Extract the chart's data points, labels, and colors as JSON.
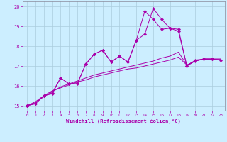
{
  "background_color": "#cceeff",
  "grid_color": "#aaccdd",
  "line_color": "#aa00aa",
  "xlim": [
    -0.5,
    23.5
  ],
  "ylim": [
    14.75,
    20.25
  ],
  "xtick_labels": [
    "0",
    "1",
    "2",
    "3",
    "4",
    "5",
    "6",
    "7",
    "8",
    "9",
    "10",
    "11",
    "12",
    "13",
    "14",
    "15",
    "16",
    "17",
    "18",
    "19",
    "20",
    "21",
    "22",
    "23"
  ],
  "ytick_labels": [
    "15",
    "16",
    "17",
    "18",
    "19",
    "20"
  ],
  "ytick_vals": [
    15,
    16,
    17,
    18,
    19,
    20
  ],
  "xlabel": "Windchill (Refroidissement éolien,°C)",
  "series": [
    {
      "x": [
        0,
        1,
        2,
        3,
        4,
        5,
        6,
        7,
        8,
        9,
        10,
        11,
        12,
        13,
        14,
        15,
        16,
        17,
        18,
        19,
        20,
        21,
        22,
        23
      ],
      "y": [
        15.0,
        15.1,
        15.5,
        15.6,
        16.4,
        16.1,
        16.1,
        17.1,
        17.6,
        17.8,
        17.2,
        17.5,
        17.2,
        18.3,
        18.6,
        19.9,
        19.35,
        18.9,
        18.85,
        17.0,
        17.3,
        17.35,
        17.35,
        17.3
      ],
      "marker": true
    },
    {
      "x": [
        0,
        1,
        2,
        3,
        4,
        5,
        6,
        7,
        8,
        9,
        10,
        11,
        12,
        13,
        14,
        15,
        16,
        17,
        18,
        19,
        20,
        21,
        22
      ],
      "y": [
        15.0,
        15.1,
        15.5,
        15.65,
        16.4,
        16.1,
        16.15,
        17.1,
        17.6,
        17.8,
        17.2,
        17.5,
        17.2,
        18.3,
        19.75,
        19.35,
        18.85,
        18.9,
        18.75,
        17.0,
        17.25,
        17.35,
        17.35
      ],
      "marker": true
    },
    {
      "x": [
        0,
        1,
        2,
        3,
        4,
        5,
        6,
        7,
        8,
        9,
        10,
        11,
        12,
        13,
        14,
        15,
        16,
        17,
        18,
        19,
        20,
        21,
        22,
        23
      ],
      "y": [
        15.0,
        15.15,
        15.45,
        15.7,
        15.95,
        16.1,
        16.25,
        16.4,
        16.55,
        16.65,
        16.75,
        16.85,
        16.95,
        17.05,
        17.15,
        17.25,
        17.4,
        17.5,
        17.7,
        17.05,
        17.25,
        17.35,
        17.35,
        17.35
      ],
      "marker": false
    },
    {
      "x": [
        0,
        1,
        2,
        3,
        4,
        5,
        6,
        7,
        8,
        9,
        10,
        11,
        12,
        13,
        14,
        15,
        16,
        17,
        18,
        19,
        20,
        21,
        22,
        23
      ],
      "y": [
        15.0,
        15.2,
        15.5,
        15.75,
        15.9,
        16.05,
        16.2,
        16.3,
        16.45,
        16.55,
        16.65,
        16.75,
        16.85,
        16.9,
        17.0,
        17.1,
        17.2,
        17.3,
        17.45,
        17.05,
        17.25,
        17.35,
        17.35,
        17.35
      ],
      "marker": false
    }
  ]
}
